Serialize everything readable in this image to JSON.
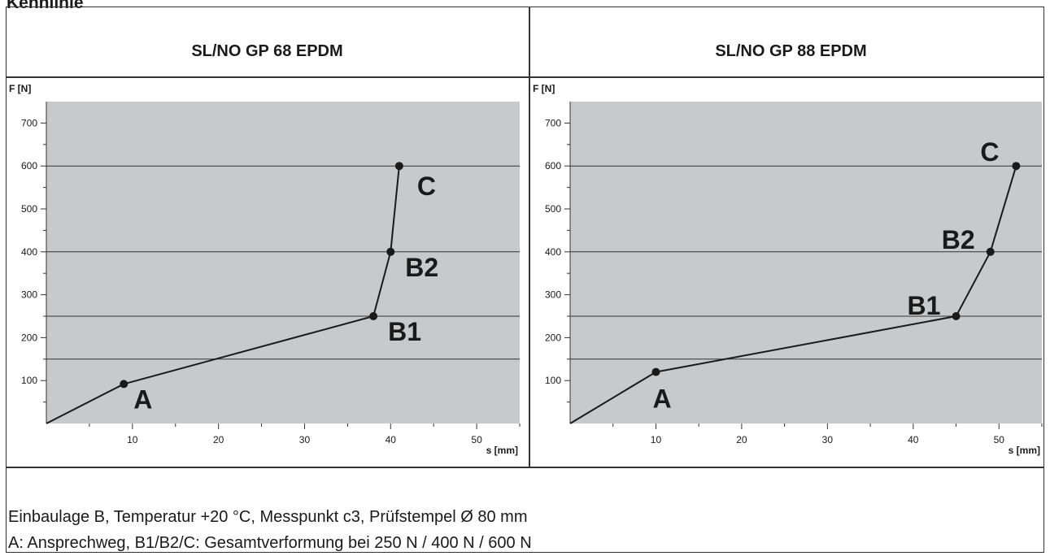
{
  "page": {
    "title": "Kennlinie"
  },
  "panels": [
    {
      "title": "SL/NO GP 68 EPDM"
    },
    {
      "title": "SL/NO GP 88 EPDM"
    }
  ],
  "notes": [
    "Einbaulage B, Temperatur +20 °C, Messpunkt c3, Prüfstempel Ø 80 mm",
    "A: Ansprechweg, B1/B2/C: Gesamtverformung bei 250 N / 400 N / 600 N"
  ],
  "colors": {
    "plot_bg": "#c8c9cb",
    "line": "#1a1a1a",
    "grid": "#333333"
  },
  "chart_data": [
    {
      "type": "line",
      "title": "SL/NO GP 68 EPDM",
      "xlabel": "s [mm]",
      "ylabel": "F [N]",
      "xlim": [
        0,
        55
      ],
      "ylim": [
        0,
        750
      ],
      "x_ticks": [
        10,
        20,
        30,
        40,
        50
      ],
      "y_ticks": [
        100,
        200,
        300,
        400,
        500,
        600,
        700
      ],
      "reference_lines_y": [
        150,
        250,
        400,
        600
      ],
      "series": [
        {
          "x": [
            0,
            9,
            38,
            40,
            41
          ],
          "y": [
            0,
            92,
            250,
            400,
            600
          ]
        }
      ],
      "points": [
        {
          "label": "A",
          "x": 9,
          "y": 92
        },
        {
          "label": "B1",
          "x": 38,
          "y": 250
        },
        {
          "label": "B2",
          "x": 40,
          "y": 400
        },
        {
          "label": "C",
          "x": 41,
          "y": 600
        }
      ]
    },
    {
      "type": "line",
      "title": "SL/NO GP 88 EPDM",
      "xlabel": "s [mm]",
      "ylabel": "F [N]",
      "xlim": [
        0,
        55
      ],
      "ylim": [
        0,
        750
      ],
      "x_ticks": [
        10,
        20,
        30,
        40,
        50
      ],
      "y_ticks": [
        100,
        200,
        300,
        400,
        500,
        600,
        700
      ],
      "reference_lines_y": [
        150,
        250,
        400,
        600
      ],
      "series": [
        {
          "x": [
            0,
            10,
            45,
            49,
            52
          ],
          "y": [
            0,
            120,
            250,
            400,
            600
          ]
        }
      ],
      "points": [
        {
          "label": "A",
          "x": 10,
          "y": 120
        },
        {
          "label": "B1",
          "x": 45,
          "y": 250
        },
        {
          "label": "B2",
          "x": 49,
          "y": 400
        },
        {
          "label": "C",
          "x": 52,
          "y": 600
        }
      ]
    }
  ]
}
